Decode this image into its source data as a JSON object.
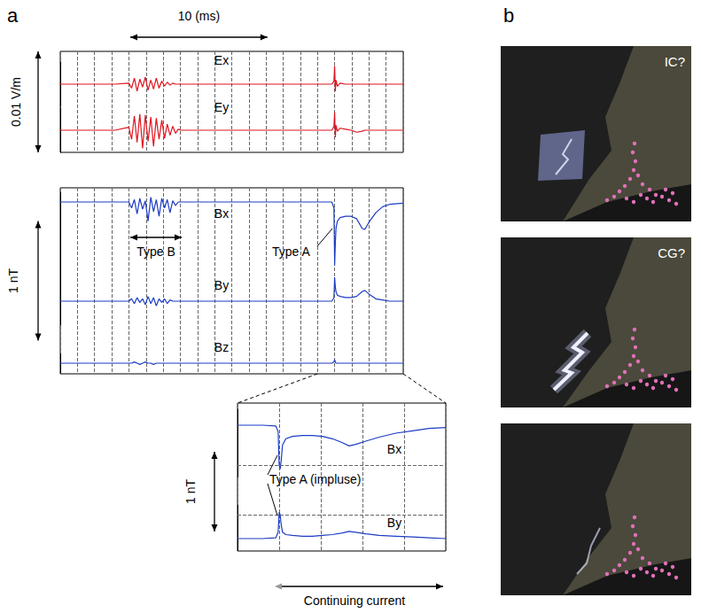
{
  "panel_labels": [
    "a",
    "b"
  ],
  "photos": [
    {
      "label": "IC?"
    },
    {
      "label": "CG?"
    },
    {
      "label": null
    }
  ],
  "chart_data": [
    {
      "type": "line",
      "xlim": [
        0,
        25
      ],
      "xticks": [
        0,
        1.25,
        2.5,
        3.75,
        5,
        6.25,
        7.5,
        8.75,
        10,
        11.25,
        12.5,
        13.75,
        15,
        16.25,
        17.5,
        18.75,
        20,
        21.25,
        22.5,
        23.75,
        25
      ],
      "grid": true,
      "tick_labels": false,
      "x_scale_bar": {
        "value": 10,
        "label": "10 (ms)"
      },
      "scale_bar": {
        "value": 0.01,
        "label": "0.01 V/m"
      },
      "x": [
        0,
        2,
        4,
        5,
        5.2,
        5.4,
        5.6,
        5.8,
        6,
        6.2,
        6.4,
        6.6,
        6.8,
        7,
        7.2,
        7.4,
        7.6,
        7.8,
        8,
        8.2,
        8.4,
        8.6,
        8.8,
        9,
        10,
        12,
        14,
        16,
        18,
        19.8,
        19.95,
        20,
        20.05,
        20.1,
        20.2,
        20.4,
        20.8,
        21.2,
        21.6,
        22,
        22.2,
        22.5,
        23,
        23.5,
        24,
        25
      ],
      "series": [
        {
          "name": "Ex",
          "color": "#e0141e",
          "ylim": [
            -0.0022,
            0.0022
          ],
          "values": [
            0,
            0,
            0,
            0.0001,
            -0.0004,
            0.0006,
            -0.0007,
            0.0005,
            -0.0003,
            0.0007,
            -0.0006,
            0.0004,
            -0.0005,
            0.0006,
            -0.0004,
            0.0003,
            -0.0002,
            0.0002,
            -0.0001,
            0.0001,
            0,
            0,
            0,
            0,
            0,
            0,
            0,
            0,
            0,
            0,
            0.0003,
            0.0018,
            -0.0007,
            0.0004,
            -0.0002,
            0.0001,
            0,
            0,
            0,
            0,
            0,
            0,
            0,
            0,
            0,
            0
          ]
        },
        {
          "name": "Ey",
          "color": "#e0141e",
          "ylim": [
            -0.0022,
            0.0022
          ],
          "values": [
            0,
            0,
            0,
            0.0003,
            -0.0009,
            0.0014,
            -0.0012,
            0.0016,
            -0.0018,
            0.0015,
            -0.0011,
            0.0013,
            -0.0016,
            0.0012,
            -0.0009,
            0.001,
            -0.0008,
            0.0006,
            -0.0005,
            0.0004,
            -0.0003,
            0.0001,
            0,
            0,
            0,
            0,
            0,
            0,
            0,
            0,
            0.0004,
            0.0018,
            -0.0007,
            0.0005,
            -0.0001,
            0.0002,
            0.0001,
            0,
            -0.0002,
            -0.0001,
            0,
            0,
            0,
            0,
            0,
            0
          ]
        }
      ]
    },
    {
      "type": "line",
      "xlim": [
        0,
        25
      ],
      "xticks": [
        0,
        1.25,
        2.5,
        3.75,
        5,
        6.25,
        7.5,
        8.75,
        10,
        11.25,
        12.5,
        13.75,
        15,
        16.25,
        17.5,
        18.75,
        20,
        21.25,
        22.5,
        23.75,
        25
      ],
      "grid": true,
      "tick_labels": false,
      "scale_bar": {
        "value": 1,
        "label": "1 nT"
      },
      "annotations": [
        "Type B",
        "Type A"
      ],
      "x": [
        0,
        2,
        4,
        5,
        5.2,
        5.4,
        5.6,
        5.8,
        6,
        6.2,
        6.4,
        6.6,
        6.8,
        7,
        7.2,
        7.4,
        7.6,
        7.8,
        8,
        8.2,
        8.4,
        8.6,
        8.8,
        9,
        10,
        12,
        14,
        16,
        18,
        19.8,
        19.95,
        20,
        20.05,
        20.1,
        20.2,
        20.4,
        20.8,
        21.2,
        21.6,
        22,
        22.2,
        22.5,
        23,
        23.5,
        24,
        25
      ],
      "series": [
        {
          "name": "Bx",
          "color": "#1c3cc4",
          "ylim": [
            -0.6,
            0.08
          ],
          "values": [
            0,
            0,
            0,
            0,
            -0.05,
            0.02,
            -0.1,
            0.03,
            -0.06,
            0.01,
            -0.16,
            0.04,
            -0.08,
            0.02,
            -0.12,
            0.03,
            -0.05,
            0.02,
            -0.09,
            0.01,
            -0.03,
            0,
            0,
            0,
            0,
            0,
            0,
            0,
            0,
            0,
            -0.05,
            -0.53,
            -0.35,
            -0.22,
            -0.16,
            -0.13,
            -0.12,
            -0.12,
            -0.14,
            -0.22,
            -0.23,
            -0.17,
            -0.09,
            -0.04,
            -0.02,
            -0.01
          ]
        },
        {
          "name": "By",
          "color": "#1c3cc4",
          "ylim": [
            -0.2,
            0.25
          ],
          "values": [
            0,
            0,
            0,
            0,
            0.02,
            -0.02,
            0.03,
            -0.01,
            0.02,
            -0.03,
            0.04,
            -0.02,
            0.03,
            -0.04,
            0.02,
            -0.01,
            0.02,
            -0.02,
            0.01,
            0,
            0,
            0,
            0,
            0,
            0,
            0,
            0,
            0,
            0,
            0,
            0.03,
            0.2,
            0.12,
            0.08,
            0.05,
            0.04,
            0.03,
            0.03,
            0.04,
            0.08,
            0.09,
            0.06,
            0.02,
            0.01,
            0,
            0
          ]
        },
        {
          "name": "Bz",
          "color": "#1c3cc4",
          "ylim": [
            -0.08,
            0.08
          ],
          "values": [
            0,
            0,
            0,
            0,
            0,
            0.01,
            0,
            -0.01,
            0,
            0.01,
            0,
            0,
            -0.01,
            0,
            0,
            0,
            0,
            0,
            0,
            0,
            0,
            0,
            0,
            0,
            0,
            0,
            0,
            0,
            0,
            0,
            0.01,
            0.03,
            0.01,
            0,
            0,
            0,
            0,
            0,
            0,
            0,
            0,
            0,
            0,
            0,
            0,
            0
          ]
        }
      ]
    },
    {
      "type": "line",
      "xlim": [
        18.75,
        25
      ],
      "xticks": [
        18.75,
        20,
        21.25,
        22.5,
        23.75,
        25
      ],
      "grid": true,
      "tick_labels": false,
      "scale_bar": {
        "value": 1,
        "label": "1 nT"
      },
      "annotations": [
        "Type A (impluse)",
        "Continuing current"
      ],
      "x": [
        18.75,
        19.5,
        19.9,
        19.97,
        20,
        20.03,
        20.06,
        20.1,
        20.2,
        20.4,
        20.7,
        21,
        21.3,
        21.6,
        21.9,
        22.1,
        22.3,
        22.6,
        23,
        23.5,
        24,
        24.5,
        25
      ],
      "series": [
        {
          "name": "Bx",
          "color": "#1c3cc4",
          "ylim": [
            -0.65,
            0.2
          ],
          "yticks": [
            -0.5
          ],
          "values": [
            0,
            0,
            -0.01,
            -0.08,
            -0.5,
            -0.55,
            -0.45,
            -0.25,
            -0.17,
            -0.14,
            -0.13,
            -0.13,
            -0.14,
            -0.17,
            -0.22,
            -0.26,
            -0.24,
            -0.2,
            -0.15,
            -0.1,
            -0.07,
            -0.04,
            -0.03
          ]
        },
        {
          "name": "By",
          "color": "#1c3cc4",
          "ylim": [
            -0.15,
            0.42
          ],
          "yticks": [
            0.3
          ],
          "values": [
            0,
            0,
            0.01,
            0.08,
            0.33,
            0.3,
            0.18,
            0.08,
            0.05,
            0.04,
            0.03,
            0.03,
            0.04,
            0.05,
            0.07,
            0.09,
            0.08,
            0.06,
            0.04,
            0.03,
            0.02,
            0.01,
            0
          ]
        }
      ]
    }
  ]
}
